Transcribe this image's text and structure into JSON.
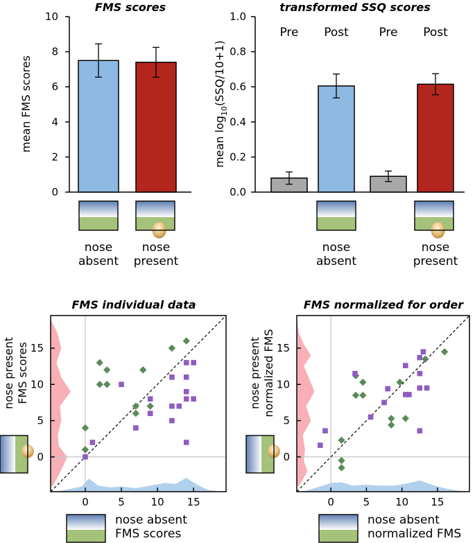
{
  "colors": {
    "blue": "#8DB9E3",
    "red": "#B3261E",
    "gray": "#A8A8A8",
    "green": "#5B8A5A",
    "purple": "#8E5CC0",
    "pink": "#F7A1A8",
    "lightblue": "#A9CBEA",
    "refline": "#C8C8C8"
  },
  "icons": {
    "nose_absent": "nose-absent-scene-icon",
    "nose_present": "nose-present-scene-icon"
  },
  "chart_data": [
    {
      "id": "fms-bars",
      "type": "bar",
      "title": "FMS scores",
      "ylabel": "mean FMS scores",
      "ylim": [
        0,
        10
      ],
      "yticks": [
        0,
        2,
        4,
        6,
        8,
        10
      ],
      "categories": [
        "nose absent",
        "nose present"
      ],
      "category_lines": [
        [
          "nose",
          "absent"
        ],
        [
          "nose",
          "present"
        ]
      ],
      "values": [
        7.5,
        7.4
      ],
      "errors": [
        0.95,
        0.85
      ],
      "colors": [
        "blue",
        "red"
      ]
    },
    {
      "id": "ssq-bars",
      "type": "bar",
      "title": "transformed SSQ scores",
      "ylabel_parts": [
        "mean log",
        "10",
        "(SSQ/10+1)"
      ],
      "ylim": [
        0,
        1.0
      ],
      "yticks": [
        "0.0",
        "0.2",
        "0.4",
        "0.6",
        "0.8",
        "1.0"
      ],
      "series_headers": [
        "Pre",
        "Post",
        "Pre",
        "Post"
      ],
      "values": [
        0.08,
        0.605,
        0.09,
        0.615
      ],
      "errors": [
        0.035,
        0.068,
        0.03,
        0.06
      ],
      "colors": [
        "gray",
        "blue",
        "gray",
        "red"
      ],
      "groups": [
        [
          "nose",
          "absent"
        ],
        [
          "nose",
          "present"
        ]
      ]
    },
    {
      "id": "fms-individual",
      "type": "scatter",
      "title": "FMS individual data",
      "xlim": [
        -4.8,
        19.5
      ],
      "ylim": [
        -4.8,
        19.5
      ],
      "xticks": [
        0,
        5,
        10,
        15
      ],
      "yticks": [
        0,
        5,
        10,
        15
      ],
      "ylabel": [
        "nose present",
        "FMS scores"
      ],
      "xlabel": [
        "nose absent",
        "FMS scores"
      ],
      "series": [
        {
          "name": "green",
          "marker": "diamond",
          "points": [
            [
              0,
              4
            ],
            [
              0,
              1
            ],
            [
              2,
              13
            ],
            [
              2,
              10
            ],
            [
              3,
              12
            ],
            [
              3,
              10
            ],
            [
              7,
              7
            ],
            [
              7,
              6
            ],
            [
              8,
              12
            ],
            [
              9,
              7
            ],
            [
              12,
              15
            ],
            [
              14,
              16
            ]
          ]
        },
        {
          "name": "purple",
          "marker": "square",
          "points": [
            [
              0,
              0
            ],
            [
              1,
              2
            ],
            [
              5,
              10
            ],
            [
              9,
              8
            ],
            [
              9,
              6
            ],
            [
              7,
              4
            ],
            [
              12,
              11
            ],
            [
              12,
              7
            ],
            [
              12,
              5
            ],
            [
              13,
              7
            ],
            [
              14,
              13
            ],
            [
              14,
              11
            ],
            [
              14,
              9
            ],
            [
              14,
              8
            ],
            [
              15,
              13
            ],
            [
              15,
              8
            ],
            [
              14,
              2
            ]
          ]
        }
      ],
      "density_y": [
        [
          -4,
          0.1
        ],
        [
          -1.5,
          0.5
        ],
        [
          0,
          0.7
        ],
        [
          1.5,
          0.35
        ],
        [
          3,
          0.3
        ],
        [
          5,
          0.45
        ],
        [
          7,
          0.4
        ],
        [
          9,
          0.85
        ],
        [
          11,
          0.45
        ],
        [
          13,
          0.25
        ],
        [
          15,
          0.45
        ],
        [
          17,
          0.3
        ],
        [
          19,
          0
        ]
      ],
      "density_x": [
        [
          -4,
          0
        ],
        [
          -0.5,
          0.3
        ],
        [
          0.5,
          0.75
        ],
        [
          1.8,
          0.35
        ],
        [
          3.5,
          0.25
        ],
        [
          5,
          0.3
        ],
        [
          7,
          0.2
        ],
        [
          9,
          0.35
        ],
        [
          11,
          0.5
        ],
        [
          12.5,
          0.45
        ],
        [
          14,
          0.8
        ],
        [
          15.5,
          0.4
        ],
        [
          17,
          0.1
        ],
        [
          19,
          0
        ]
      ]
    },
    {
      "id": "fms-normalized",
      "type": "scatter",
      "title": "FMS normalized for order",
      "xlim": [
        -4.8,
        19.5
      ],
      "ylim": [
        -4.8,
        19.5
      ],
      "xticks": [
        0,
        5,
        10,
        15
      ],
      "yticks": [
        0,
        5,
        10,
        15
      ],
      "ylabel": [
        "nose present",
        "normalized FMS"
      ],
      "xlabel": [
        "nose absent",
        "normalized FMS"
      ],
      "series": [
        {
          "name": "green",
          "marker": "diamond",
          "points": [
            [
              1.5,
              2.3
            ],
            [
              1.5,
              -0.5
            ],
            [
              1.5,
              -1.5
            ],
            [
              3.5,
              11.2
            ],
            [
              3.5,
              8.5
            ],
            [
              4.5,
              10.3
            ],
            [
              4.5,
              8.5
            ],
            [
              8.5,
              5.3
            ],
            [
              8.5,
              4.4
            ],
            [
              9.7,
              10.3
            ],
            [
              10.5,
              5.3
            ],
            [
              13.3,
              13.5
            ],
            [
              16,
              14.5
            ]
          ]
        },
        {
          "name": "purple",
          "marker": "square",
          "points": [
            [
              -1.5,
              1.6
            ],
            [
              -0.8,
              3.6
            ],
            [
              3.4,
              11.5
            ],
            [
              5.6,
              5.5
            ],
            [
              7.5,
              7.5
            ],
            [
              8,
              9.4
            ],
            [
              10.5,
              12.6
            ],
            [
              10.5,
              8.6
            ],
            [
              11,
              8.6
            ],
            [
              12.5,
              13.7
            ],
            [
              12.5,
              11.5
            ],
            [
              13,
              14.5
            ],
            [
              12.5,
              9.5
            ],
            [
              13.5,
              9.5
            ],
            [
              12.5,
              3.6
            ]
          ]
        }
      ],
      "density_y": [
        [
          -4,
          0.1
        ],
        [
          -2,
          0.45
        ],
        [
          -0.5,
          0.3
        ],
        [
          1,
          0.35
        ],
        [
          3,
          0.25
        ],
        [
          5,
          0.6
        ],
        [
          7,
          0.4
        ],
        [
          9,
          0.75
        ],
        [
          11,
          0.5
        ],
        [
          12.5,
          0.3
        ],
        [
          14,
          0.6
        ],
        [
          15.5,
          0.3
        ],
        [
          17,
          0.1
        ],
        [
          19,
          0
        ]
      ],
      "density_x": [
        [
          -4,
          0
        ],
        [
          -1.5,
          0.3
        ],
        [
          0,
          0.5
        ],
        [
          1.5,
          0.55
        ],
        [
          3,
          0.35
        ],
        [
          5,
          0.4
        ],
        [
          7,
          0.35
        ],
        [
          9,
          0.35
        ],
        [
          11,
          0.5
        ],
        [
          12.5,
          0.65
        ],
        [
          13.5,
          0.5
        ],
        [
          15,
          0.3
        ],
        [
          16.5,
          0.15
        ],
        [
          19,
          0
        ]
      ]
    }
  ]
}
